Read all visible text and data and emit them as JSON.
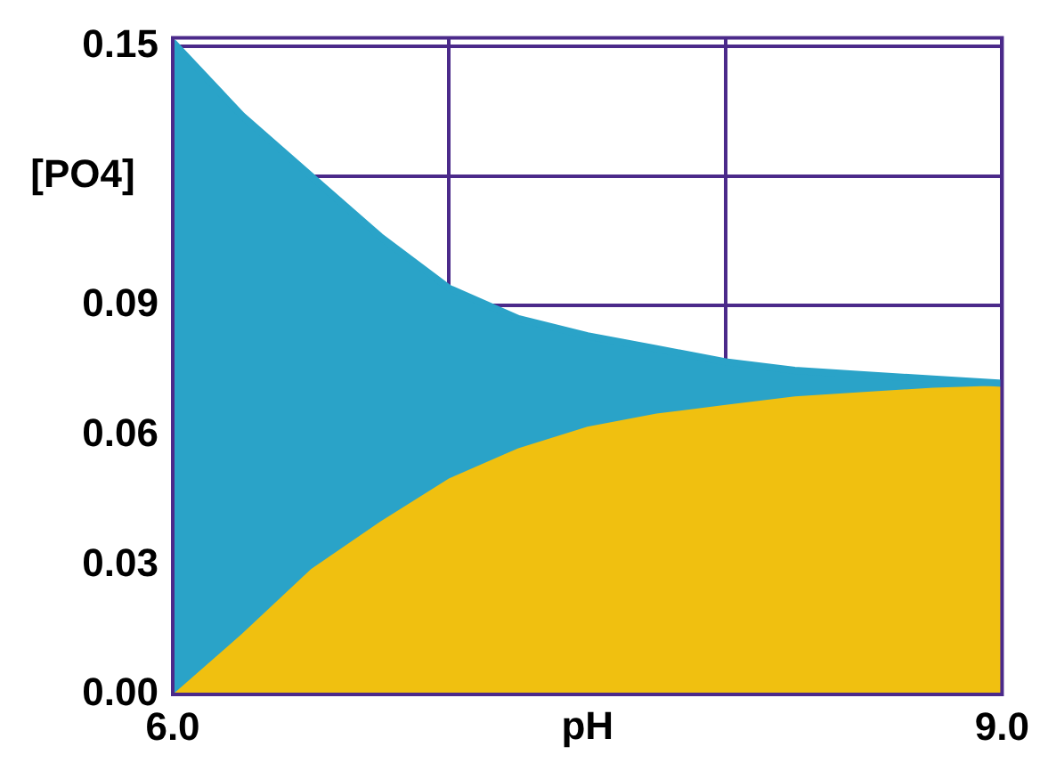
{
  "chart_data": {
    "type": "area",
    "xlabel": "pH",
    "ylabel": "[PO4]",
    "x": [
      6,
      6.25,
      6.5,
      6.75,
      7,
      7.25,
      7.5,
      7.75,
      8,
      8.25,
      8.5,
      8.75,
      9
    ],
    "series": [
      {
        "color": "#2aa3c8",
        "values": [
          0.151,
          0.134,
          0.12,
          0.106,
          0.094,
          0.087,
          0.083,
          0.08,
          0.077,
          0.075,
          0.074,
          0.073,
          0.072
        ]
      },
      {
        "color": "#f0c010",
        "values": [
          0,
          0.014,
          0.029,
          0.04,
          0.05,
          0.057,
          0.062,
          0.065,
          0.067,
          0.069,
          0.07,
          0.071,
          0.0715
        ]
      }
    ],
    "xlim": [
      6,
      9
    ],
    "ylim": [
      0,
      0.152
    ],
    "xticks": [
      {
        "value": 6,
        "label": "6.0"
      },
      {
        "value": 7,
        "label": null
      },
      {
        "value": 8,
        "label": null
      },
      {
        "value": 9,
        "label": "9.0"
      }
    ],
    "yticks": [
      {
        "value": 0,
        "label": "0.00"
      },
      {
        "value": 0.03,
        "label": "0.03"
      },
      {
        "value": 0.06,
        "label": "0.06"
      },
      {
        "value": 0.09,
        "label": "0.09"
      },
      {
        "value": 0.12,
        "label": null
      },
      {
        "value": 0.15,
        "label": "0.15"
      }
    ],
    "grid": true
  }
}
